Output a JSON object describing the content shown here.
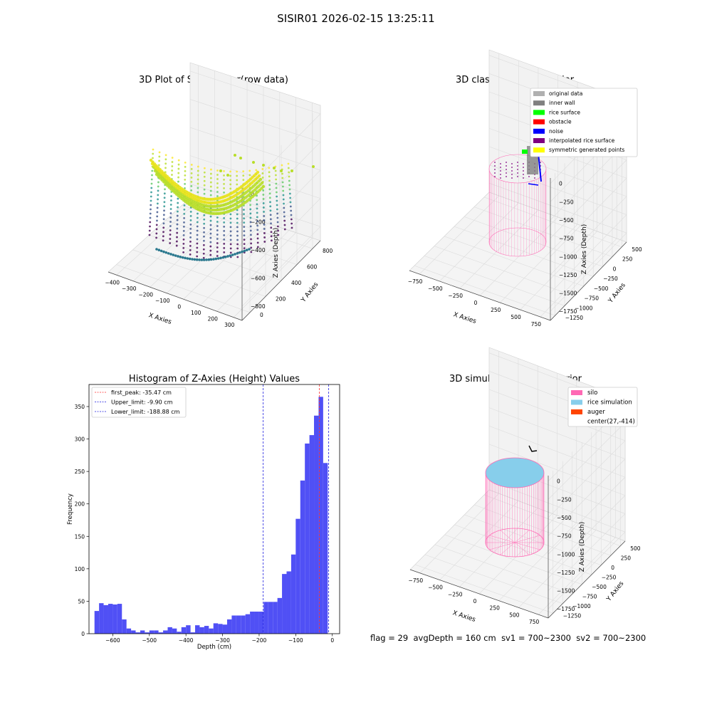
{
  "figure_title": "SISIR01 2026-02-15 13:25:11",
  "footer": {
    "flag": "flag = 29",
    "avg_depth": "avgDepth = 160 cm",
    "sv1": "sv1 = 700~2300",
    "sv2": "sv2 = 700~2300"
  },
  "colors": {
    "histogram_bar": "#5050f5",
    "first_peak_line": "#ff3030",
    "limit_lines": "#2020e0",
    "silo": "#ff69b4",
    "rice_simulation": "#87ceeb",
    "auger": "#ff4500",
    "original_data": "#b0b0b0",
    "inner_wall": "#808080",
    "rice_surface": "#00ff00",
    "obstacle": "#ff0000",
    "noise": "#0000ff",
    "interpolated_rice_surface": "#800080",
    "symmetric_generated_points": "#ffff00"
  },
  "chart_data": [
    {
      "type": "scatter",
      "title": "3D Plot of Silo Interior(row data)",
      "xlabel": "X Axies",
      "ylabel": "Y Axies",
      "zlabel": "Z Axies (Depth)",
      "x_ticks": [
        "−400",
        "−300",
        "−200",
        "−100",
        "0",
        "100",
        "200",
        "300"
      ],
      "y_ticks": [
        "0",
        "200",
        "400",
        "600",
        "800"
      ],
      "z_ticks": [
        "0",
        "−200",
        "−400",
        "−600",
        "−800"
      ],
      "xlim": [
        -450,
        330
      ],
      "ylim": [
        -80,
        900
      ],
      "zlim": [
        -900,
        0
      ],
      "colormap": "viridis (by depth)"
    },
    {
      "type": "scatter",
      "title": "3D classify of Silo Interior",
      "xlabel": "X Axies",
      "ylabel": "Y Axies",
      "zlabel": "Z Axies (Depth)",
      "x_ticks": [
        "−750",
        "−500",
        "−250",
        "0",
        "250",
        "500",
        "750"
      ],
      "y_ticks": [
        "−1250",
        "−1000",
        "−750",
        "−500",
        "−250",
        "0",
        "250",
        "500"
      ],
      "z_ticks": [
        "0",
        "−250",
        "−500",
        "−750",
        "−1000",
        "−1250",
        "−1500",
        "−1750"
      ],
      "legend": [
        "original data",
        "inner wall",
        "rice surface",
        "obstacle",
        "noise",
        "interpolated rice surface",
        "symmetric generated points"
      ],
      "legend_position": "top-right"
    },
    {
      "type": "bar",
      "title": "Histogram of Z-Axies (Height) Values",
      "xlabel": "Depth (cm)",
      "ylabel": "Frequency",
      "x_ticks": [
        -600,
        -500,
        -400,
        -300,
        -200,
        -100,
        0
      ],
      "y_ticks": [
        0,
        50,
        100,
        150,
        200,
        250,
        300,
        350
      ],
      "xlim": [
        -665,
        20
      ],
      "ylim": [
        0,
        384
      ],
      "bin_width": 12.5,
      "bin_start": -650,
      "values": [
        35,
        47,
        44,
        46,
        45,
        46,
        22,
        8,
        5,
        2,
        5,
        2,
        5,
        5,
        2,
        5,
        10,
        8,
        3,
        10,
        13,
        2,
        13,
        10,
        12,
        8,
        16,
        15,
        14,
        22,
        28,
        28,
        28,
        30,
        34,
        34,
        34,
        49,
        49,
        49,
        55,
        92,
        96,
        122,
        177,
        236,
        293,
        306,
        336,
        365,
        263
      ],
      "lines": [
        {
          "label": "first_peak: -35.47 cm",
          "x": -35.47,
          "style": "red dashed"
        },
        {
          "label": "Upper_limit: -9.90 cm",
          "x": -9.9,
          "style": "blue dashed"
        },
        {
          "label": "Lower_limit: -188.88 cm",
          "x": -188.88,
          "style": "blue dashed"
        }
      ],
      "legend_position": "top-left"
    },
    {
      "type": "scatter",
      "title": "3D simulation of Silo Interior",
      "xlabel": "X Axies",
      "ylabel": "Y Axies",
      "zlabel": "Z Axies (Depth)",
      "x_ticks": [
        "−750",
        "−500",
        "−250",
        "0",
        "250",
        "500",
        "750"
      ],
      "y_ticks": [
        "−1250",
        "−1000",
        "−750",
        "−500",
        "−250",
        "0",
        "250",
        "500"
      ],
      "z_ticks": [
        "0",
        "−250",
        "−500",
        "−750",
        "−1000",
        "−1250",
        "−1500",
        "−1750"
      ],
      "legend": [
        "silo",
        "rice simulation",
        "auger",
        "center(27,-414)"
      ],
      "legend_position": "top-right"
    }
  ]
}
